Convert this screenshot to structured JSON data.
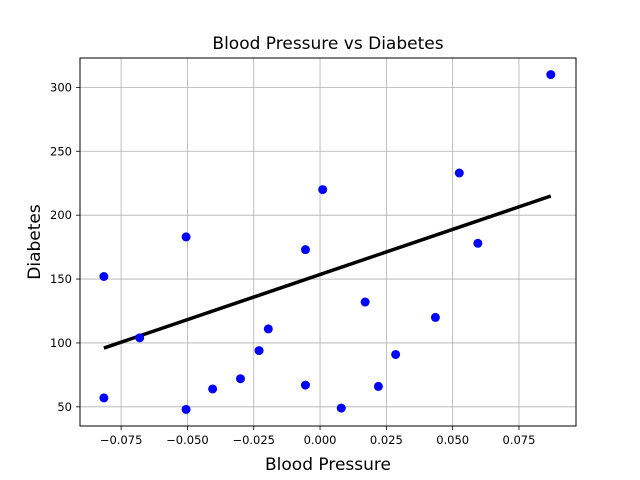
{
  "chart_data": {
    "type": "scatter",
    "title": "Blood Pressure vs Diabetes",
    "xlabel": "Blood Pressure",
    "ylabel": "Diabetes",
    "xlim": [
      -0.0905,
      0.0965
    ],
    "ylim": [
      35,
      323
    ],
    "xticks": [
      -0.075,
      -0.05,
      -0.025,
      0.0,
      0.025,
      0.05,
      0.075
    ],
    "xtick_labels": [
      "−0.075",
      "−0.050",
      "−0.025",
      "0.000",
      "0.025",
      "0.050",
      "0.075"
    ],
    "yticks": [
      50,
      100,
      150,
      200,
      250,
      300
    ],
    "ytick_labels": [
      "50",
      "100",
      "150",
      "200",
      "250",
      "300"
    ],
    "grid": true,
    "series": [
      {
        "type": "scatter",
        "color": "#0000ff",
        "points": [
          {
            "x": 0.087,
            "y": 310
          },
          {
            "x": 0.0525,
            "y": 233
          },
          {
            "x": 0.001,
            "y": 220
          },
          {
            "x": -0.0505,
            "y": 183
          },
          {
            "x": 0.0595,
            "y": 178
          },
          {
            "x": -0.0055,
            "y": 173
          },
          {
            "x": -0.0815,
            "y": 152
          },
          {
            "x": 0.017,
            "y": 132
          },
          {
            "x": 0.0435,
            "y": 120
          },
          {
            "x": -0.0195,
            "y": 111
          },
          {
            "x": -0.068,
            "y": 104
          },
          {
            "x": -0.023,
            "y": 94
          },
          {
            "x": 0.0285,
            "y": 91
          },
          {
            "x": -0.03,
            "y": 72
          },
          {
            "x": -0.0055,
            "y": 67
          },
          {
            "x": 0.022,
            "y": 66
          },
          {
            "x": -0.0405,
            "y": 64
          },
          {
            "x": -0.0815,
            "y": 57
          },
          {
            "x": -0.0505,
            "y": 48
          },
          {
            "x": 0.008,
            "y": 49
          }
        ]
      },
      {
        "type": "line",
        "color": "#000000",
        "points": [
          {
            "x": -0.0815,
            "y": 96
          },
          {
            "x": 0.087,
            "y": 215
          }
        ]
      }
    ]
  }
}
